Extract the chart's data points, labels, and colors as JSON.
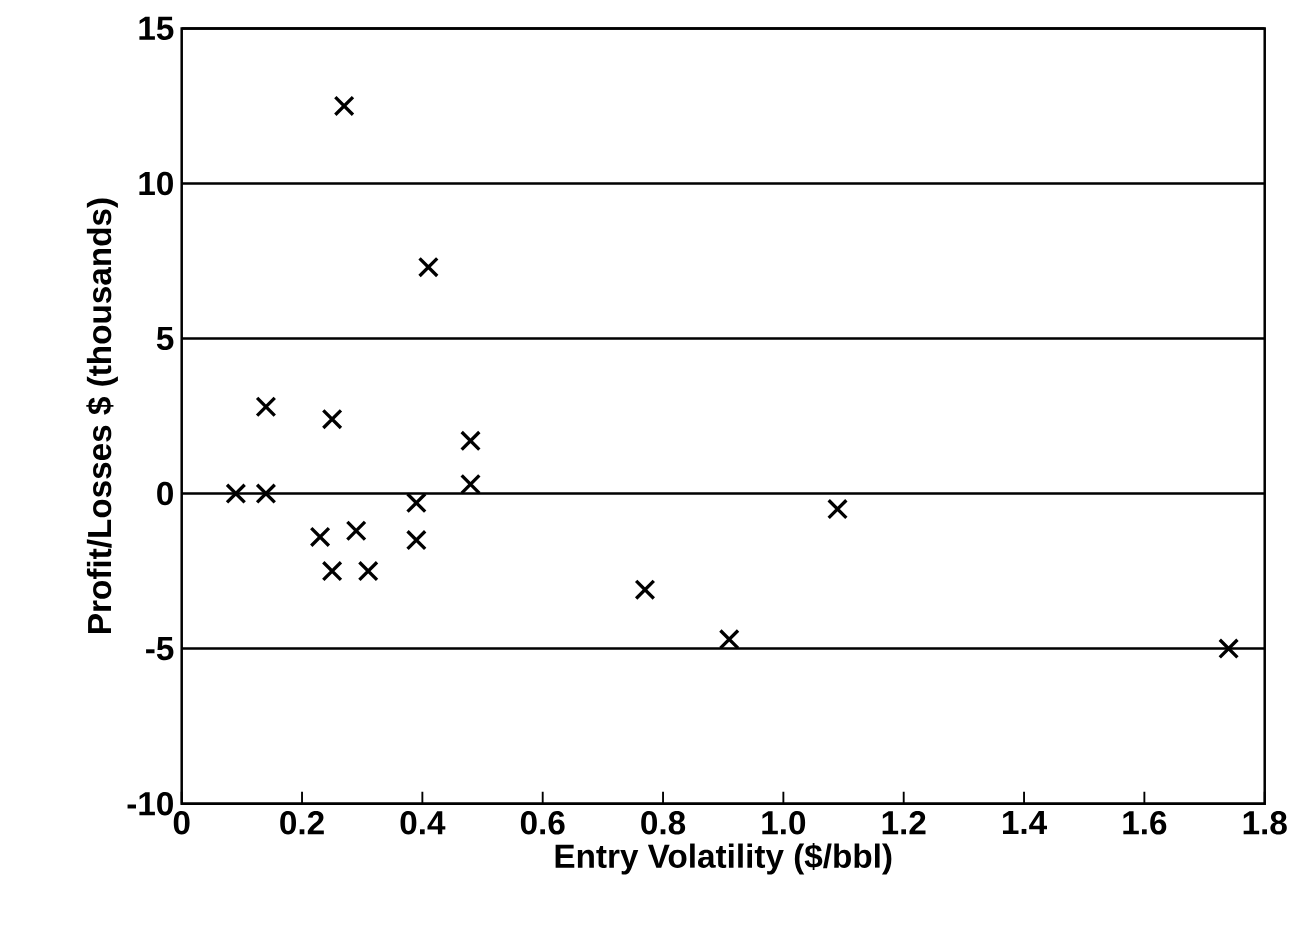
{
  "chart_data": {
    "type": "scatter",
    "xlabel": "Entry Volatility ($/bbl)",
    "ylabel": "Profit/Losses $ (thousands)",
    "x": [
      0.27,
      0.41,
      0.14,
      0.25,
      0.48,
      0.48,
      0.09,
      0.14,
      0.23,
      0.29,
      0.25,
      0.31,
      0.39,
      0.39,
      1.09,
      0.91,
      1.74,
      0.77
    ],
    "series": [
      {
        "color": "#000000",
        "values": [
          12.5,
          7.3,
          2.8,
          2.4,
          1.7,
          0.3,
          0,
          0,
          -1.4,
          -1.2,
          -2.5,
          -2.5,
          -0.3,
          -1.5,
          -0.5,
          -4.7,
          -5.0,
          -3.1
        ]
      }
    ],
    "xlim": [
      0,
      1.8
    ],
    "ylim": [
      -10,
      15
    ],
    "xticks": [
      0,
      0.2,
      0.4,
      0.6,
      0.8,
      {
        "value": 1.0,
        "label": "1.0"
      },
      1.2,
      1.4,
      1.6,
      1.8
    ],
    "yticks": [
      -10,
      -5,
      0,
      5,
      10,
      15
    ],
    "grid": "y",
    "marker": "cross"
  }
}
